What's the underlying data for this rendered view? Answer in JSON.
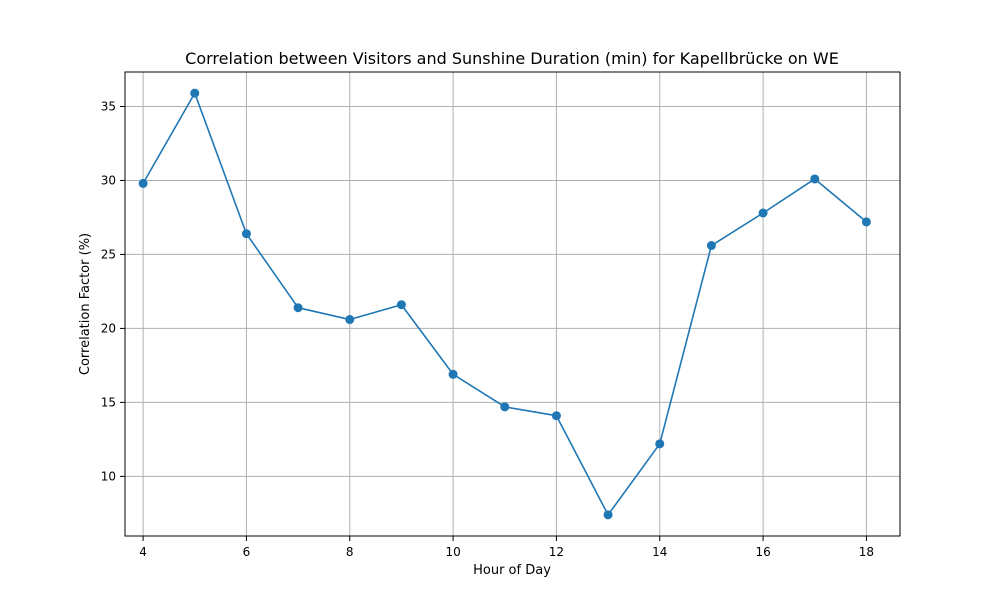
{
  "chart_data": {
    "type": "line",
    "title": "Correlation between Visitors and Sunshine Duration (min) for Kapellbrücke on WE",
    "xlabel": "Hour of Day",
    "ylabel": "Correlation Factor (%)",
    "x": [
      4,
      5,
      6,
      7,
      8,
      9,
      10,
      11,
      12,
      13,
      14,
      15,
      16,
      17,
      18
    ],
    "series": [
      {
        "values": [
          29.8,
          35.9,
          26.4,
          21.4,
          20.6,
          21.6,
          16.9,
          14.7,
          14.1,
          7.4,
          12.2,
          25.6,
          27.8,
          30.1,
          27.2
        ],
        "color": "#1f77b4",
        "marker": "circle"
      }
    ],
    "xlim": [
      3.65,
      18.65
    ],
    "ylim": [
      5.97,
      37.33
    ],
    "xticks": [
      4,
      6,
      8,
      10,
      12,
      14,
      16,
      18
    ],
    "yticks": [
      10,
      15,
      20,
      25,
      30,
      35
    ],
    "grid": true,
    "legend": "none"
  }
}
